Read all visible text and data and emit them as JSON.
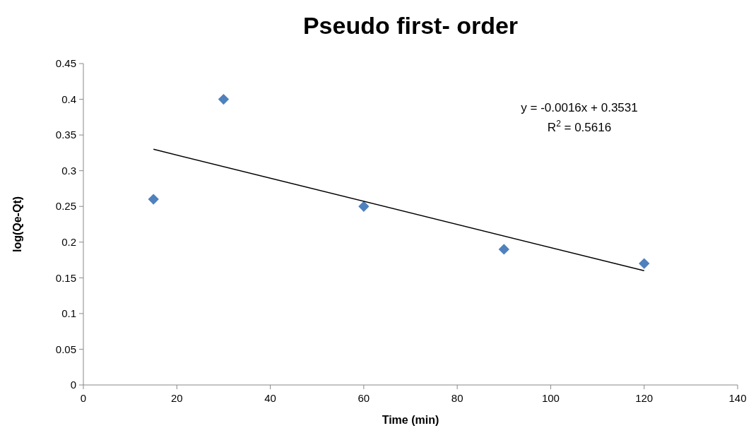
{
  "chart_data": {
    "type": "scatter",
    "title": "Pseudo first- order",
    "xlabel": "Time (min)",
    "ylabel": "log(Qe-Qt)",
    "x": [
      15,
      30,
      60,
      90,
      120
    ],
    "series": [
      {
        "type": "scatter",
        "color": "#4f81bd",
        "marker": "diamond",
        "values": [
          0.26,
          0.4,
          0.25,
          0.19,
          0.17
        ]
      },
      {
        "type": "line",
        "color": "#000000",
        "marker": "none",
        "x": [
          15,
          120
        ],
        "values": [
          0.33,
          0.16
        ]
      }
    ],
    "xlim": [
      0,
      140
    ],
    "xticks": [
      0,
      20,
      40,
      60,
      80,
      100,
      120,
      140
    ],
    "ylim": [
      0,
      0.45
    ],
    "yticks": [
      0,
      0.05,
      0.1,
      0.15,
      0.2,
      0.25,
      0.3,
      0.35,
      0.4,
      0.45
    ],
    "grid": false,
    "annotations": [
      "y = -0.0016x + 0.3531",
      "R$^{2}$ = 0.5616"
    ]
  }
}
